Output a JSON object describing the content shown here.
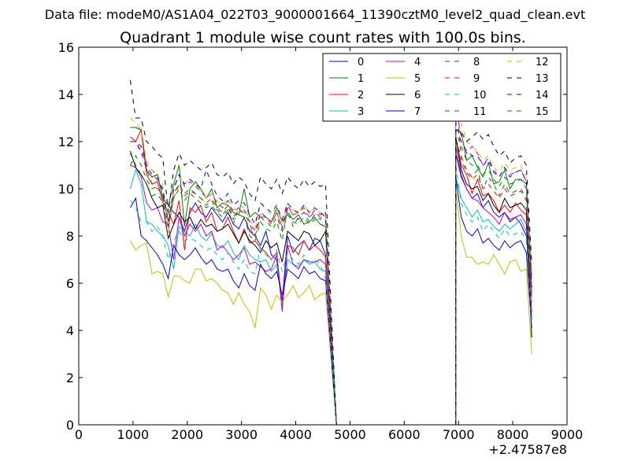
{
  "figure": {
    "suptitle": "Data file: modeM0/AS1A04_022T03_9000001664_11390cztM0_level2_quad_clean.evt"
  },
  "chart_data": {
    "type": "line",
    "title": "Quadrant 1 module wise count rates with 100.0s bins.",
    "xlabel": "",
    "ylabel": "",
    "x_offset_label": "+2.47587e8",
    "xlim": [
      0,
      9000
    ],
    "ylim": [
      0,
      16
    ],
    "xticks": [
      0,
      1000,
      2000,
      3000,
      4000,
      5000,
      6000,
      7000,
      8000,
      9000
    ],
    "yticks": [
      0,
      2,
      4,
      6,
      8,
      10,
      12,
      14,
      16
    ],
    "grid": false,
    "legend": {
      "placement": "top-right",
      "columns": 4
    },
    "segments": [
      {
        "x_start": 950,
        "x_end": 4550,
        "step": 100
      },
      {
        "x_start": 6950,
        "x_end": 8350,
        "step": 100
      }
    ],
    "gap": {
      "x_start": 4650,
      "x_end": 6850,
      "step": 100,
      "value": 0,
      "x_end_edge": 4750,
      "x_start_edge": 6950
    },
    "series": [
      {
        "name": "0",
        "color": "#0000ff",
        "dash": "solid",
        "seg1": [
          12.6,
          12.6,
          12.5,
          10.8,
          10.5,
          10.6,
          9.6,
          9.3,
          9.0,
          8.8,
          8.2,
          9.0,
          9.4,
          9.0,
          8.8,
          9.2,
          8.9,
          8.6,
          9.0,
          8.5,
          8.3,
          8.8,
          8.2,
          8.0,
          7.6,
          8.2,
          7.2,
          7.0,
          5.2,
          8.0,
          7.3,
          7.6,
          7.8,
          7.4,
          7.9,
          7.8,
          7.2
        ],
        "seg2": [
          11.5,
          10.5,
          10.0,
          9.6,
          9.8,
          9.2,
          9.5,
          9.0,
          8.8,
          9.0,
          8.6,
          8.8,
          8.5,
          8.0,
          5.8
        ]
      },
      {
        "name": "1",
        "color": "#008000",
        "dash": "solid",
        "seg1": [
          12.6,
          12.6,
          12.5,
          10.8,
          10.5,
          10.6,
          9.6,
          9.3,
          10.2,
          11.0,
          8.4,
          10.0,
          10.3,
          10.0,
          9.6,
          10.0,
          9.2,
          9.4,
          9.3,
          9.0,
          8.9,
          10.0,
          8.8,
          9.0,
          8.8,
          8.8,
          8.6,
          9.2,
          8.6,
          9.0,
          8.7,
          8.9,
          8.5,
          8.6,
          8.8,
          8.5,
          8.4
        ],
        "seg2": [
          12.5,
          12.4,
          11.2,
          11.4,
          10.9,
          10.5,
          11.1,
          10.2,
          10.3,
          10.8,
          10.0,
          10.4,
          10.4,
          10.2,
          6.3
        ]
      },
      {
        "name": "2",
        "color": "#ff0000",
        "dash": "solid",
        "seg1": [
          12.2,
          12.0,
          12.5,
          10.6,
          10.2,
          10.3,
          9.4,
          9.0,
          8.5,
          9.5,
          7.4,
          9.2,
          9.0,
          9.3,
          8.6,
          9.0,
          8.2,
          8.3,
          8.8,
          8.2,
          7.7,
          8.3,
          7.7,
          7.8,
          7.5,
          7.3,
          7.0,
          7.3,
          5.0,
          7.6,
          7.5,
          7.2,
          7.8,
          7.4,
          7.6,
          7.4,
          7.1
        ],
        "seg2": [
          12.2,
          11.0,
          10.6,
          9.8,
          10.4,
          9.7,
          9.8,
          9.5,
          9.0,
          9.3,
          9.0,
          9.4,
          9.1,
          8.9,
          4.8
        ]
      },
      {
        "name": "3",
        "color": "#00bfbf",
        "dash": "solid",
        "seg1": [
          10.0,
          10.8,
          10.2,
          8.6,
          8.5,
          8.2,
          8.0,
          7.6,
          6.6,
          8.4,
          8.2,
          8.0,
          8.5,
          8.0,
          7.8,
          8.1,
          7.6,
          7.5,
          7.8,
          7.3,
          7.0,
          7.6,
          7.2,
          7.0,
          6.9,
          7.0,
          6.5,
          6.8,
          5.0,
          7.0,
          6.8,
          6.7,
          7.0,
          6.8,
          6.9,
          6.6,
          6.5
        ],
        "seg2": [
          10.5,
          9.6,
          9.2,
          8.8,
          9.1,
          8.6,
          8.7,
          8.4,
          8.2,
          8.5,
          8.3,
          8.5,
          8.7,
          8.2,
          4.5
        ]
      },
      {
        "name": "4",
        "color": "#bf00bf",
        "dash": "solid",
        "seg1": [
          11.0,
          10.9,
          10.5,
          9.4,
          9.1,
          9.2,
          8.6,
          8.5,
          7.0,
          8.8,
          8.0,
          8.5,
          8.2,
          8.5,
          8.0,
          8.2,
          7.4,
          7.6,
          7.3,
          7.0,
          7.2,
          7.5,
          6.8,
          6.9,
          6.7,
          6.5,
          6.6,
          7.2,
          4.8,
          7.6,
          6.8,
          6.6,
          7.0,
          6.9,
          6.9,
          7.0,
          6.8
        ],
        "seg2": [
          11.8,
          10.6,
          10.0,
          9.6,
          9.5,
          9.2,
          9.0,
          8.8,
          8.5,
          9.0,
          8.7,
          8.8,
          8.9,
          8.5,
          4.5
        ]
      },
      {
        "name": "5",
        "color": "#bfbf00",
        "dash": "solid",
        "seg1": [
          7.8,
          7.4,
          7.6,
          7.7,
          6.4,
          6.5,
          6.4,
          5.4,
          6.3,
          6.3,
          6.1,
          6.0,
          6.6,
          6.6,
          6.1,
          6.2,
          6.0,
          5.7,
          5.6,
          5.1,
          5.6,
          5.1,
          4.8,
          4.1,
          5.8,
          5.5,
          4.9,
          5.5,
          5.2,
          5.5,
          5.9,
          5.4,
          5.6,
          5.9,
          5.3,
          5.5,
          5.6
        ],
        "seg2": [
          10.0,
          8.0,
          7.1,
          7.1,
          6.8,
          6.9,
          6.8,
          7.2,
          6.8,
          6.4,
          6.9,
          7.0,
          6.5,
          6.6,
          3.0
        ]
      },
      {
        "name": "6",
        "color": "#000000",
        "dash": "solid",
        "seg1": [
          11.6,
          10.9,
          10.6,
          10.2,
          9.6,
          9.2,
          9.3,
          7.9,
          8.5,
          9.0,
          8.6,
          8.8,
          8.3,
          8.7,
          8.4,
          8.5,
          8.2,
          8.3,
          8.5,
          8.1,
          7.7,
          8.2,
          7.8,
          7.6,
          7.3,
          7.8,
          7.5,
          7.7,
          6.9,
          8.2,
          8.0,
          7.8,
          8.2,
          8.1,
          7.6,
          7.8,
          8.2
        ],
        "seg2": [
          12.2,
          10.8,
          10.2,
          10.0,
          10.1,
          9.5,
          9.8,
          9.3,
          9.0,
          9.6,
          9.2,
          9.3,
          9.4,
          9.1,
          3.7
        ]
      },
      {
        "name": "7",
        "color": "#0000cc",
        "dash": "solid",
        "seg1": [
          9.2,
          9.6,
          8.0,
          7.8,
          7.5,
          7.2,
          6.8,
          6.2,
          7.6,
          7.2,
          7.0,
          7.2,
          7.5,
          7.1,
          6.8,
          7.0,
          6.6,
          6.5,
          6.6,
          6.1,
          5.8,
          6.4,
          5.9,
          5.7,
          6.8,
          6.4,
          6.2,
          6.5,
          5.5,
          6.6,
          6.4,
          6.2,
          6.7,
          6.4,
          6.5,
          6.2,
          6.1
        ],
        "seg2": [
          10.5,
          8.8,
          8.2,
          8.0,
          8.3,
          7.7,
          7.9,
          7.6,
          7.4,
          7.8,
          7.5,
          7.7,
          7.8,
          7.3,
          4.1
        ]
      },
      {
        "name": "8",
        "color": "#008000",
        "dash": "dashed",
        "seg1": [
          11.5,
          11.0,
          10.6,
          10.2,
          9.7,
          9.8,
          9.4,
          8.4,
          9.6,
          10.0,
          9.5,
          9.8,
          9.6,
          9.4,
          9.2,
          9.3,
          9.0,
          8.8,
          9.1,
          8.5,
          9.2,
          8.8,
          8.0,
          7.8,
          8.6,
          8.3,
          8.2,
          8.6,
          7.8,
          9.2,
          8.4,
          8.8,
          9.0,
          8.6,
          8.9,
          8.7,
          9.0
        ],
        "seg2": [
          12.0,
          11.4,
          10.8,
          10.5,
          10.8,
          10.0,
          10.5,
          10.2,
          9.7,
          10.2,
          9.8,
          9.9,
          10.0,
          9.6,
          6.0
        ]
      },
      {
        "name": "9",
        "color": "#ff0000",
        "dash": "dashed",
        "seg1": [
          12.0,
          12.0,
          11.6,
          10.8,
          10.2,
          10.0,
          9.8,
          8.3,
          9.6,
          10.2,
          9.7,
          9.9,
          9.8,
          9.6,
          9.4,
          9.6,
          9.2,
          9.0,
          9.3,
          8.8,
          9.1,
          9.0,
          8.5,
          8.0,
          9.0,
          8.8,
          8.5,
          9.0,
          8.4,
          9.3,
          8.9,
          9.0,
          9.2,
          8.8,
          9.1,
          8.9,
          9.0
        ],
        "seg2": [
          14.5,
          11.2,
          10.7,
          10.4,
          10.6,
          10.0,
          10.2,
          9.9,
          9.6,
          10.0,
          9.7,
          9.8,
          9.9,
          9.5,
          5.2
        ]
      },
      {
        "name": "10",
        "color": "#00bfbf",
        "dash": "dashed",
        "seg1": [
          9.5,
          9.2,
          8.6,
          8.6,
          8.2,
          8.4,
          8.0,
          7.0,
          7.8,
          8.2,
          7.8,
          7.9,
          7.8,
          7.6,
          7.4,
          7.5,
          7.2,
          7.0,
          7.3,
          6.9,
          6.6,
          7.0,
          6.5,
          6.4,
          7.5,
          7.2,
          7.0,
          7.4,
          6.5,
          7.3,
          7.0,
          6.8,
          7.2,
          6.9,
          7.0,
          6.8,
          6.2
        ],
        "seg2": [
          11.0,
          9.4,
          8.9,
          8.6,
          8.8,
          8.2,
          8.5,
          8.2,
          7.9,
          8.3,
          8.0,
          8.1,
          8.2,
          7.8,
          4.4
        ]
      },
      {
        "name": "11",
        "color": "#bf00bf",
        "dash": "dashed",
        "seg1": [
          12.0,
          12.0,
          11.5,
          11.0,
          10.8,
          10.5,
          9.9,
          8.4,
          10.0,
          10.6,
          10.1,
          10.3,
          10.1,
          9.9,
          9.6,
          9.8,
          9.4,
          9.2,
          9.5,
          9.0,
          9.2,
          9.1,
          8.6,
          8.2,
          9.0,
          8.8,
          8.6,
          9.0,
          8.3,
          9.2,
          8.9,
          8.7,
          9.0,
          8.8,
          9.0,
          8.8,
          8.7
        ],
        "seg2": [
          13.5,
          12.2,
          11.5,
          11.8,
          11.5,
          11.0,
          11.3,
          10.8,
          10.5,
          10.9,
          10.6,
          10.7,
          10.8,
          10.3,
          5.5
        ]
      },
      {
        "name": "12",
        "color": "#bfbf00",
        "dash": "dashed",
        "seg1": [
          13.0,
          12.8,
          12.5,
          11.2,
          10.8,
          10.6,
          10.2,
          8.0,
          10.1,
          10.5,
          10.2,
          10.4,
          10.2,
          9.9,
          9.6,
          9.8,
          9.5,
          9.3,
          9.6,
          9.1,
          9.3,
          9.2,
          8.7,
          8.3,
          9.4,
          9.1,
          8.9,
          9.2,
          8.6,
          9.4,
          9.1,
          9.0,
          9.3,
          9.0,
          9.2,
          9.0,
          8.9
        ],
        "seg2": [
          13.0,
          12.8,
          12.0,
          11.8,
          11.6,
          11.2,
          11.4,
          10.9,
          10.7,
          11.1,
          10.8,
          10.9,
          11.0,
          10.5,
          6.2
        ]
      },
      {
        "name": "13",
        "color": "#000000",
        "dash": "dashed",
        "seg1": [
          14.6,
          13.0,
          13.0,
          12.0,
          11.8,
          11.5,
          11.3,
          9.0,
          10.8,
          11.5,
          11.0,
          11.2,
          11.0,
          10.8,
          10.9,
          11.1,
          10.6,
          10.5,
          10.7,
          10.2,
          10.5,
          10.3,
          9.8,
          9.5,
          10.5,
          10.2,
          10.0,
          10.4,
          9.8,
          10.5,
          10.2,
          10.0,
          10.4,
          10.1,
          10.3,
          10.1,
          10.2
        ],
        "seg2": [
          12.5,
          12.4,
          12.0,
          12.2,
          12.4,
          12.1,
          12.3,
          11.8,
          11.4,
          11.6,
          11.1,
          11.3,
          11.4,
          11.0,
          6.8
        ]
      },
      {
        "name": "14",
        "color": "#0000ff",
        "dash": "dashed",
        "seg1": [
          12.0,
          12.0,
          11.8,
          11.0,
          10.6,
          10.4,
          10.0,
          8.6,
          10.0,
          10.6,
          10.2,
          10.4,
          10.2,
          10.0,
          10.8,
          10.2,
          9.7,
          9.5,
          9.8,
          9.3,
          9.5,
          9.4,
          8.9,
          8.5,
          9.4,
          9.2,
          9.0,
          9.3,
          8.7,
          9.4,
          9.1,
          9.0,
          9.3,
          9.0,
          9.2,
          9.0,
          8.8
        ],
        "seg2": [
          12.8,
          12.0,
          11.6,
          11.4,
          11.4,
          11.0,
          11.2,
          10.7,
          10.5,
          10.9,
          10.5,
          10.7,
          10.8,
          10.3,
          5.8
        ]
      },
      {
        "name": "15",
        "color": "#008000",
        "dash": "dashed",
        "seg1": [
          11.0,
          11.4,
          11.0,
          10.4,
          10.0,
          10.1,
          9.6,
          8.6,
          9.8,
          10.2,
          9.8,
          10.0,
          9.8,
          9.6,
          9.3,
          9.5,
          9.1,
          8.9,
          9.2,
          8.7,
          8.9,
          8.8,
          8.3,
          8.0,
          8.8,
          8.6,
          8.4,
          8.8,
          8.2,
          8.9,
          8.6,
          8.5,
          8.8,
          8.5,
          8.7,
          8.5,
          8.4
        ],
        "seg2": [
          12.4,
          11.8,
          11.2,
          11.0,
          11.0,
          10.6,
          10.8,
          10.4,
          10.1,
          10.5,
          10.2,
          10.3,
          10.4,
          10.0,
          5.6
        ]
      }
    ]
  }
}
